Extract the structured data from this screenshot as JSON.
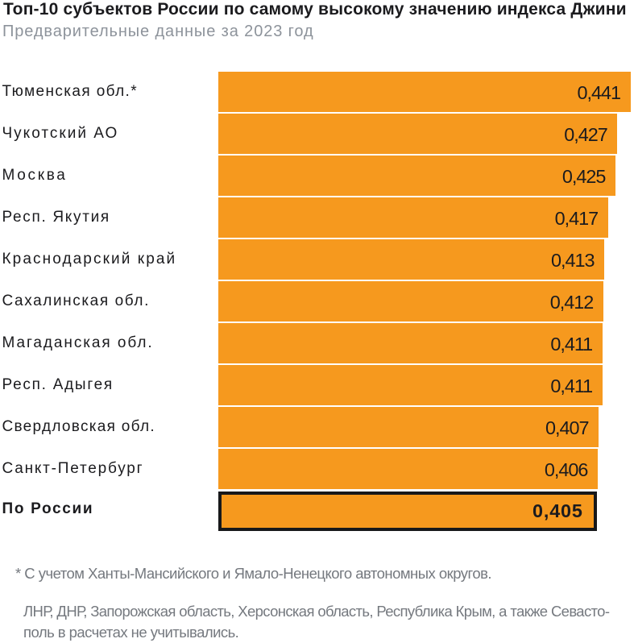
{
  "title": "Топ-10 субъектов России по самому высокому значению индекса Джини",
  "subtitle": "Предварительные данные за 2023 год",
  "chart_data": {
    "type": "bar",
    "orientation": "horizontal",
    "categories": [
      "Тюменская обл.*",
      "Чукотский АО",
      "Москва",
      "Респ. Якутия",
      "Краснодарский край",
      "Сахалинская обл.",
      "Магаданская обл.",
      "Респ. Адыгея",
      "Свердловская обл.",
      "Санкт-Петербург",
      "По России"
    ],
    "values": [
      0.441,
      0.427,
      0.425,
      0.417,
      0.413,
      0.412,
      0.411,
      0.411,
      0.407,
      0.406,
      0.405
    ],
    "value_labels": [
      "0,441",
      "0,427",
      "0,425",
      "0,417",
      "0,413",
      "0,412",
      "0,411",
      "0,411",
      "0,407",
      "0,406",
      "0,405"
    ],
    "xlim": [
      0,
      0.441
    ],
    "highlighted_category": "По России",
    "bar_color": "#f6991e",
    "highlight_border_color": "#17181a",
    "legend": false,
    "grid": false
  },
  "footnotes": {
    "asterisk_note": "* С учетом Ханты-Мансийского и Ямало-Ненецкого автономных округов.",
    "exclusion_note_lines": [
      "ЛНР, ДНР, Запорожская область, Херсонская область, Республика Крым, а также Севасто-",
      "поль в расчетах не учитывались."
    ]
  }
}
